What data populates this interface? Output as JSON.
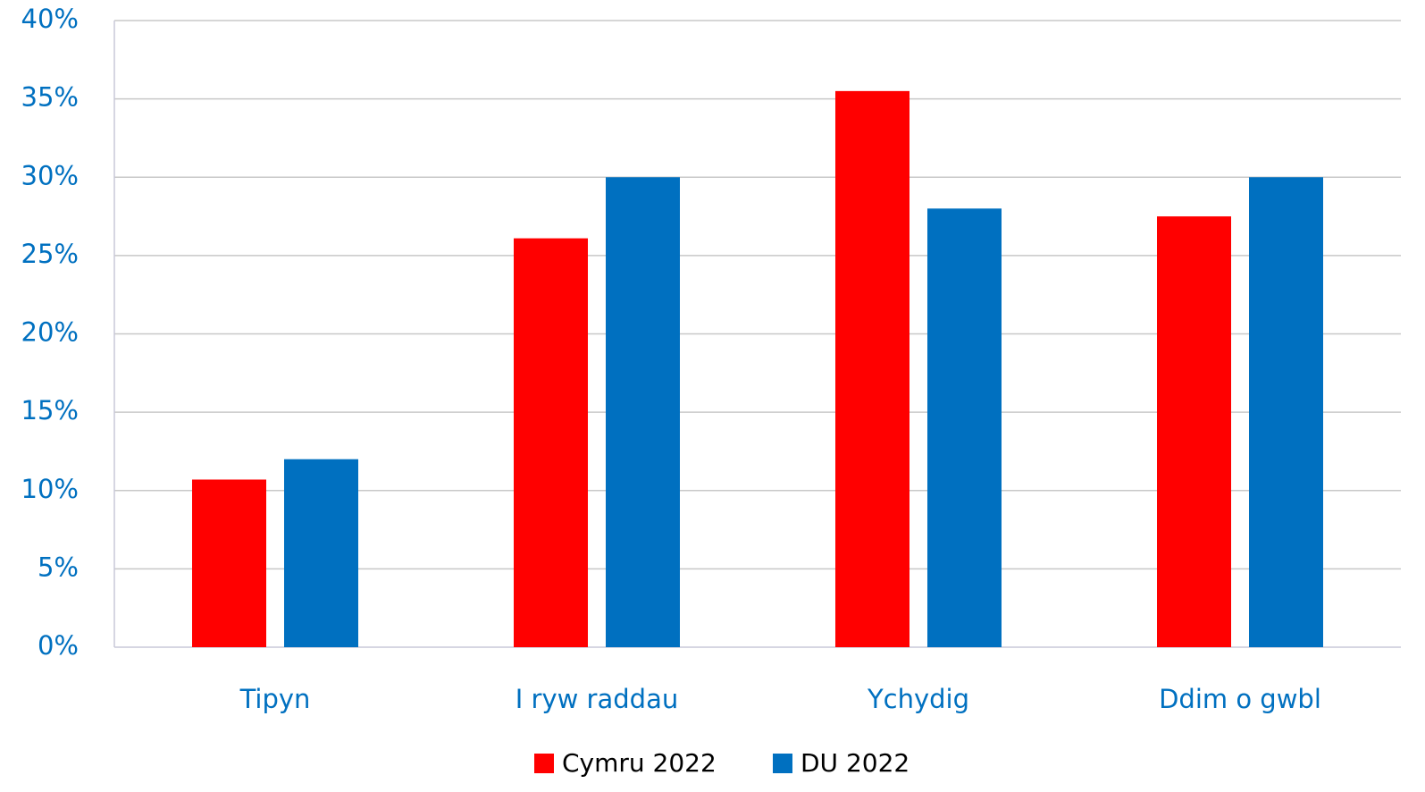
{
  "chart_data": {
    "type": "bar",
    "categories": [
      "Tipyn",
      "I ryw raddau",
      "Ychydig",
      "Ddim o gwbl"
    ],
    "series": [
      {
        "name": "Cymru 2022",
        "color": "#ff0000",
        "values": [
          10.7,
          26.1,
          35.5,
          27.5
        ]
      },
      {
        "name": "DU 2022",
        "color": "#0070c0",
        "values": [
          12.0,
          30.0,
          28.0,
          30.0
        ]
      }
    ],
    "ylim": [
      0,
      40
    ],
    "yticks": [
      {
        "value": 0,
        "label": "0%"
      },
      {
        "value": 5,
        "label": "5%"
      },
      {
        "value": 10,
        "label": "10%"
      },
      {
        "value": 15,
        "label": "15%"
      },
      {
        "value": 20,
        "label": "20%"
      },
      {
        "value": 25,
        "label": "25%"
      },
      {
        "value": 30,
        "label": "30%"
      },
      {
        "value": 35,
        "label": "35%"
      },
      {
        "value": 40,
        "label": "40%"
      }
    ],
    "grid": true,
    "legend": "bottom"
  }
}
